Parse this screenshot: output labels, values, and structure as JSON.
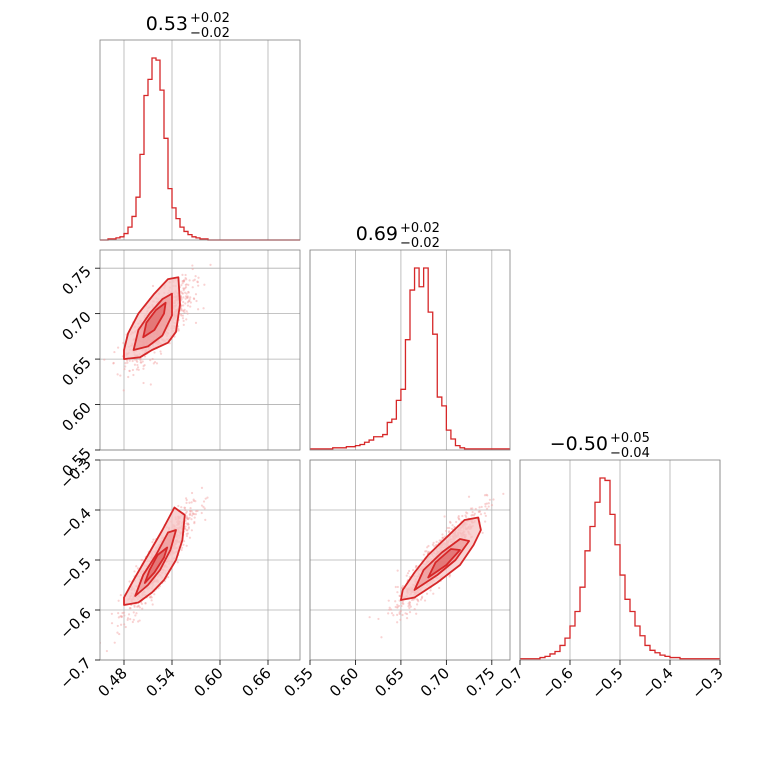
{
  "chart_data": {
    "type": "corner",
    "color": "#d62728",
    "grid": true,
    "parameters": [
      {
        "title": {
          "median": "0.53",
          "upper": "+0.02",
          "lower": "−0.02"
        },
        "range": [
          0.45,
          0.7
        ],
        "ticks": [
          0.48,
          0.54,
          0.6,
          0.66
        ],
        "tick_labels": [
          "0.48",
          "0.54",
          "0.60",
          "0.66"
        ],
        "hist": {
          "start": 0.45,
          "bin_width": 0.005,
          "counts": [
            0,
            0,
            1,
            1,
            2,
            3,
            6,
            12,
            22,
            40,
            80,
            135,
            150,
            170,
            168,
            140,
            95,
            48,
            30,
            20,
            12,
            8,
            5,
            3,
            2,
            1,
            1,
            0,
            0,
            0,
            0,
            0,
            0,
            0,
            0,
            0,
            0,
            0,
            0,
            0,
            0,
            0,
            0,
            0,
            0,
            0,
            0,
            0,
            0,
            0
          ]
        }
      },
      {
        "title": {
          "median": "0.69",
          "upper": "+0.02",
          "lower": "−0.02"
        },
        "range": [
          0.55,
          0.77
        ],
        "ticks": [
          0.55,
          0.6,
          0.65,
          0.7,
          0.75
        ],
        "tick_labels": [
          "0.55",
          "0.60",
          "0.65",
          "0.70",
          "0.75"
        ],
        "hist": {
          "start": 0.55,
          "bin_width": 0.005,
          "counts": [
            1,
            1,
            1,
            1,
            1,
            2,
            2,
            2,
            3,
            3,
            4,
            5,
            7,
            9,
            12,
            12,
            14,
            25,
            28,
            45,
            55,
            100,
            145,
            165,
            148,
            165,
            125,
            105,
            48,
            40,
            18,
            10,
            4,
            2,
            1,
            1,
            1,
            1,
            1,
            1,
            1,
            1,
            1,
            1
          ]
        }
      },
      {
        "title": {
          "median": "−0.50",
          "upper": "+0.05",
          "lower": "−0.04"
        },
        "range": [
          -0.7,
          -0.3
        ],
        "ticks": [
          -0.7,
          -0.6,
          -0.5,
          -0.4,
          -0.3
        ],
        "tick_labels": [
          "−0.7",
          "−0.6",
          "−0.5",
          "−0.4",
          "−0.3"
        ],
        "hist": {
          "start": -0.7,
          "bin_width": 0.01,
          "counts": [
            1,
            1,
            1,
            1,
            2,
            3,
            5,
            7,
            12,
            18,
            28,
            40,
            60,
            90,
            110,
            130,
            150,
            148,
            120,
            95,
            70,
            50,
            40,
            28,
            20,
            12,
            8,
            6,
            4,
            3,
            2,
            2,
            1,
            1,
            1,
            1,
            1,
            1,
            1,
            1
          ]
        }
      }
    ],
    "pairs": [
      {
        "x_param": 0,
        "y_param": 1,
        "y_ticks": [
          0.55,
          0.6,
          0.65,
          0.7,
          0.75
        ],
        "y_tick_labels": [
          "0.55",
          "0.60",
          "0.65",
          "0.70",
          "0.75"
        ],
        "scatter": {
          "x_center": 0.525,
          "y_center": 0.69,
          "x_std": 0.02,
          "y_std": 0.022,
          "correlation": 0.75,
          "count": 900
        },
        "contours": [
          [
            [
              0.48,
              0.65
            ],
            [
              0.5,
              0.652
            ],
            [
              0.515,
              0.66
            ],
            [
              0.535,
              0.668
            ],
            [
              0.545,
              0.68
            ],
            [
              0.55,
              0.71
            ],
            [
              0.548,
              0.74
            ],
            [
              0.535,
              0.738
            ],
            [
              0.518,
              0.722
            ],
            [
              0.498,
              0.7
            ],
            [
              0.485,
              0.678
            ],
            [
              0.48,
              0.66
            ]
          ],
          [
            [
              0.492,
              0.66
            ],
            [
              0.51,
              0.664
            ],
            [
              0.528,
              0.676
            ],
            [
              0.54,
              0.698
            ],
            [
              0.54,
              0.722
            ],
            [
              0.528,
              0.716
            ],
            [
              0.512,
              0.7
            ],
            [
              0.498,
              0.682
            ]
          ],
          [
            [
              0.504,
              0.674
            ],
            [
              0.518,
              0.682
            ],
            [
              0.53,
              0.7
            ],
            [
              0.532,
              0.712
            ],
            [
              0.52,
              0.704
            ],
            [
              0.508,
              0.69
            ]
          ]
        ]
      },
      {
        "x_param": 0,
        "y_param": 2,
        "y_ticks": [
          -0.7,
          -0.6,
          -0.5,
          -0.4,
          -0.3
        ],
        "y_tick_labels": [
          "−0.7",
          "−0.6",
          "−0.5",
          "−0.4",
          "−0.3"
        ],
        "scatter": {
          "x_center": 0.525,
          "y_center": -0.5,
          "x_std": 0.02,
          "y_std": 0.05,
          "correlation": 0.9,
          "count": 900
        },
        "contours": [
          [
            [
              0.48,
              -0.59
            ],
            [
              0.498,
              -0.585
            ],
            [
              0.515,
              -0.565
            ],
            [
              0.53,
              -0.54
            ],
            [
              0.545,
              -0.5
            ],
            [
              0.553,
              -0.46
            ],
            [
              0.556,
              -0.41
            ],
            [
              0.543,
              -0.395
            ],
            [
              0.528,
              -0.44
            ],
            [
              0.51,
              -0.49
            ],
            [
              0.492,
              -0.54
            ],
            [
              0.48,
              -0.575
            ]
          ],
          [
            [
              0.494,
              -0.572
            ],
            [
              0.51,
              -0.55
            ],
            [
              0.525,
              -0.52
            ],
            [
              0.538,
              -0.48
            ],
            [
              0.545,
              -0.44
            ],
            [
              0.535,
              -0.445
            ],
            [
              0.52,
              -0.49
            ],
            [
              0.504,
              -0.53
            ]
          ],
          [
            [
              0.506,
              -0.546
            ],
            [
              0.518,
              -0.525
            ],
            [
              0.53,
              -0.495
            ],
            [
              0.534,
              -0.475
            ],
            [
              0.522,
              -0.49
            ],
            [
              0.512,
              -0.52
            ]
          ]
        ]
      },
      {
        "x_param": 1,
        "y_param": 2,
        "y_ticks": [],
        "y_tick_labels": [],
        "scatter": {
          "x_center": 0.69,
          "y_center": -0.5,
          "x_std": 0.022,
          "y_std": 0.05,
          "correlation": 0.92,
          "count": 900
        },
        "contours": [
          [
            [
              0.65,
              -0.58
            ],
            [
              0.665,
              -0.575
            ],
            [
              0.69,
              -0.545
            ],
            [
              0.715,
              -0.51
            ],
            [
              0.73,
              -0.47
            ],
            [
              0.738,
              -0.44
            ],
            [
              0.735,
              -0.415
            ],
            [
              0.72,
              -0.42
            ],
            [
              0.7,
              -0.455
            ],
            [
              0.68,
              -0.49
            ],
            [
              0.665,
              -0.525
            ],
            [
              0.652,
              -0.56
            ]
          ],
          [
            [
              0.665,
              -0.56
            ],
            [
              0.69,
              -0.53
            ],
            [
              0.71,
              -0.5
            ],
            [
              0.725,
              -0.462
            ],
            [
              0.715,
              -0.458
            ],
            [
              0.695,
              -0.485
            ],
            [
              0.675,
              -0.52
            ]
          ],
          [
            [
              0.68,
              -0.535
            ],
            [
              0.7,
              -0.51
            ],
            [
              0.715,
              -0.48
            ],
            [
              0.705,
              -0.478
            ],
            [
              0.688,
              -0.505
            ]
          ]
        ]
      }
    ]
  }
}
